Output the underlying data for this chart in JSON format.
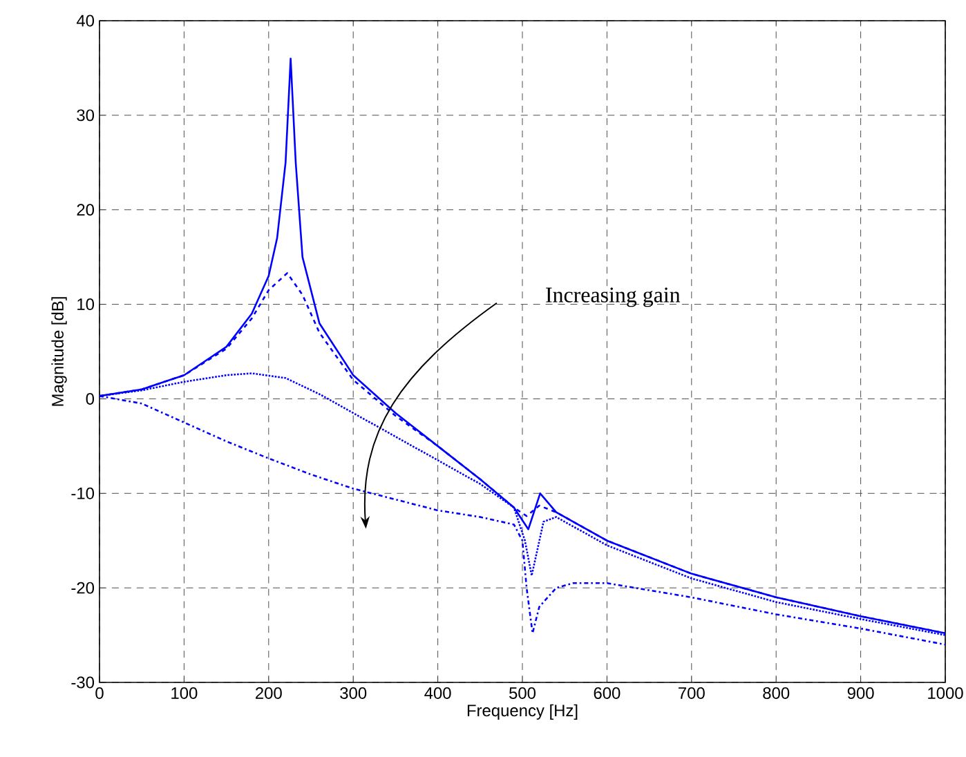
{
  "chart_data": {
    "type": "line",
    "xlabel": "Frequency    [Hz]",
    "ylabel": "Magnitude    [dB]",
    "xlim": [
      0,
      1000
    ],
    "ylim": [
      -30,
      40
    ],
    "xticks": [
      0,
      100,
      200,
      300,
      400,
      500,
      600,
      700,
      800,
      900,
      1000
    ],
    "yticks": [
      -30,
      -20,
      -10,
      0,
      10,
      20,
      30,
      40
    ],
    "grid": true,
    "annotations": [
      "Increasing gain"
    ],
    "series": [
      {
        "color": "#0000ff",
        "line_style": "solid",
        "x": [
          0,
          50,
          100,
          150,
          180,
          200,
          210,
          220,
          226,
          232,
          240,
          260,
          300,
          350,
          400,
          450,
          490,
          507,
          521,
          540,
          600,
          700,
          800,
          900,
          1000
        ],
        "values": [
          0.3,
          1,
          2.5,
          5.5,
          9,
          13,
          17,
          25,
          36,
          25,
          15,
          8,
          2.5,
          -1.5,
          -5,
          -8.5,
          -11.5,
          -13.8,
          -10,
          -12,
          -15,
          -18.5,
          -21,
          -23,
          -24.8
        ]
      },
      {
        "color": "#0000ff",
        "line_style": "dashed",
        "x": [
          0,
          50,
          100,
          150,
          180,
          200,
          222,
          240,
          260,
          300,
          350,
          400,
          450,
          490,
          505,
          520,
          540,
          600,
          700,
          800,
          900,
          1000
        ],
        "values": [
          0.3,
          1,
          2.5,
          5.3,
          8.5,
          11.5,
          13.3,
          11,
          7,
          2,
          -1.8,
          -5,
          -8.5,
          -11.5,
          -12.4,
          -11.3,
          -12,
          -15,
          -18.5,
          -21,
          -23,
          -24.8
        ]
      },
      {
        "color": "#0000ff",
        "line_style": "dotted",
        "x": [
          0,
          50,
          100,
          150,
          180,
          220,
          260,
          300,
          350,
          400,
          450,
          490,
          503,
          511,
          525,
          540,
          600,
          700,
          800,
          900,
          1000
        ],
        "values": [
          0.3,
          0.9,
          1.8,
          2.5,
          2.7,
          2.2,
          0.5,
          -1.5,
          -4,
          -6.5,
          -9,
          -11.5,
          -15,
          -18.7,
          -13,
          -12.5,
          -15.5,
          -19,
          -21.5,
          -23.3,
          -25
        ]
      },
      {
        "color": "#0000ff",
        "line_style": "dashdot",
        "x": [
          0,
          50,
          100,
          150,
          200,
          250,
          300,
          400,
          450,
          490,
          500,
          505,
          512,
          520,
          540,
          560,
          600,
          700,
          800,
          900,
          1000
        ],
        "values": [
          0.3,
          -0.5,
          -2.5,
          -4.5,
          -6.3,
          -8,
          -9.5,
          -11.8,
          -12.5,
          -13.3,
          -15,
          -20,
          -24.8,
          -22,
          -20,
          -19.5,
          -19.5,
          -21,
          -22.8,
          -24.3,
          -26
        ]
      }
    ]
  }
}
